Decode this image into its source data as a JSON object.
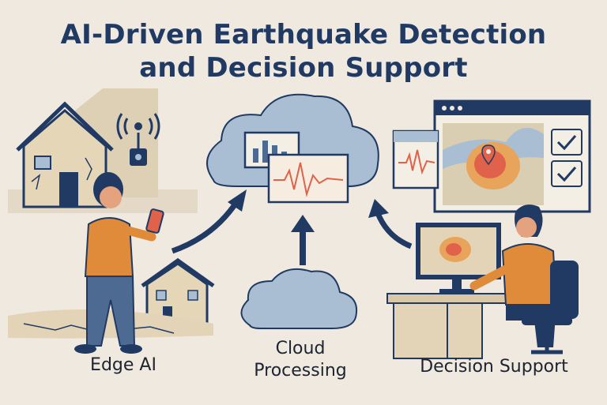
{
  "title": {
    "line1": "AI-Driven Earthquake Detection",
    "line2": "and Decision Support"
  },
  "labels": {
    "edge_ai": "Edge AI",
    "cloud_processing_line1": "Cloud",
    "cloud_processing_line2": "Processing",
    "decision_support": "Decision Support"
  },
  "colors": {
    "navy": "#213a63",
    "orange": "#e08b3a",
    "cloud": "#a9bed3",
    "beige": "#e3d4b8",
    "background": "#efe9df"
  }
}
